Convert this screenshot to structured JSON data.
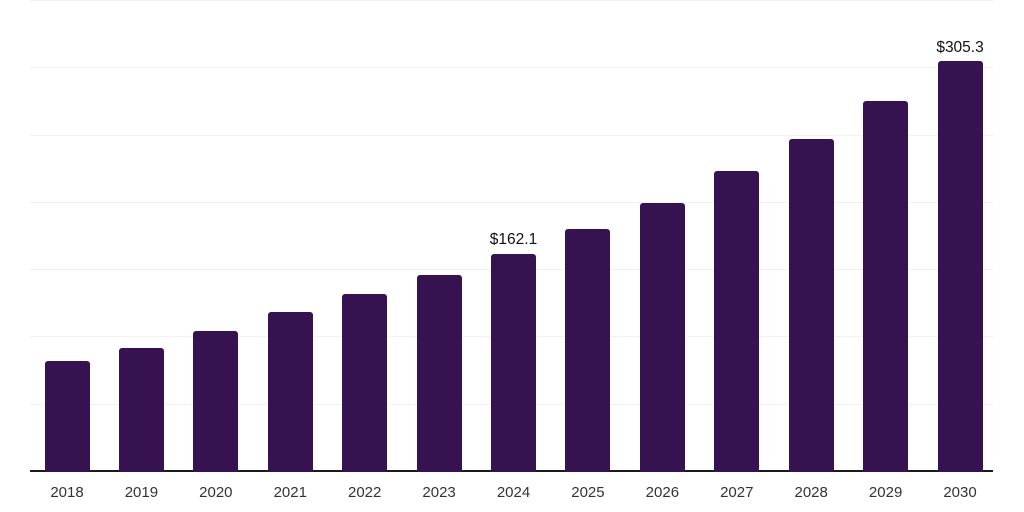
{
  "chart": {
    "background_color": "#ffffff"
  },
  "chart_data": {
    "type": "bar",
    "title": "",
    "xlabel": "",
    "ylabel": "",
    "legend": "none",
    "grid": true,
    "categories": [
      "2018",
      "2019",
      "2020",
      "2021",
      "2022",
      "2023",
      "2024",
      "2025",
      "2026",
      "2027",
      "2028",
      "2029",
      "2030"
    ],
    "values": [
      82.4,
      91.9,
      104.8,
      118.8,
      132.0,
      146.3,
      162.1,
      180.5,
      200.1,
      223.5,
      247.8,
      275.5,
      305.3
    ],
    "data_labels": [
      "",
      "",
      "",
      "",
      "",
      "",
      "$162.1",
      "",
      "",
      "",
      "",
      "",
      "$305.3"
    ],
    "ylim": [
      0,
      350
    ],
    "gridline_step": 50,
    "colors": {
      "bar": "#361250",
      "axis_line": "#1a1a1a",
      "gridline": "#f2f2f2",
      "tick_label": "#333333",
      "value_label": "#111111"
    }
  }
}
